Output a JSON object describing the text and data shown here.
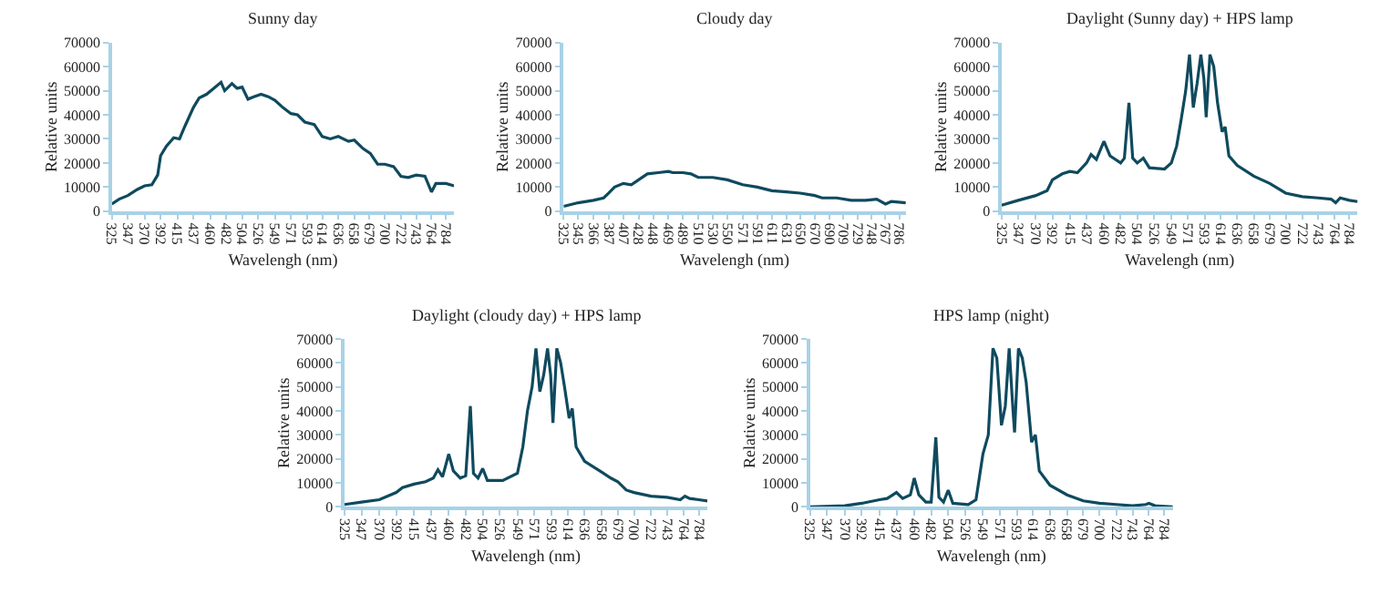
{
  "chart_data": [
    {
      "type": "line",
      "title": "Sunny day",
      "xlabel": "Wavelengh (nm)",
      "ylabel": "Relative units",
      "xlim": [
        325,
        795
      ],
      "ylim": [
        0,
        70000
      ],
      "xticks": [
        325,
        347,
        370,
        392,
        415,
        437,
        460,
        482,
        504,
        526,
        549,
        571,
        593,
        614,
        636,
        658,
        679,
        700,
        722,
        743,
        764,
        784
      ],
      "yticks": [
        0,
        10000,
        20000,
        30000,
        40000,
        50000,
        60000,
        70000
      ],
      "series": [
        {
          "color": "#0f4a5e",
          "x": [
            325,
            335,
            347,
            360,
            370,
            380,
            388,
            392,
            400,
            410,
            418,
            425,
            437,
            445,
            455,
            465,
            475,
            480,
            490,
            497,
            504,
            512,
            520,
            530,
            540,
            549,
            560,
            571,
            580,
            590,
            603,
            614,
            625,
            636,
            650,
            658,
            670,
            680,
            690,
            700,
            712,
            722,
            732,
            743,
            755,
            764,
            770,
            784,
            795
          ],
          "values": [
            3000,
            5000,
            6500,
            9000,
            10500,
            11000,
            15000,
            23000,
            27000,
            30500,
            30000,
            35000,
            43000,
            47000,
            48500,
            51000,
            53500,
            50000,
            53000,
            51000,
            51500,
            46500,
            47500,
            48500,
            47500,
            46000,
            43000,
            40500,
            40000,
            37000,
            36000,
            31000,
            30000,
            31000,
            29000,
            29500,
            26000,
            24000,
            19500,
            19500,
            18500,
            14500,
            14000,
            15000,
            14500,
            8000,
            11500,
            11500,
            10500
          ]
        }
      ]
    },
    {
      "type": "line",
      "title": "Cloudy day",
      "xlabel": "Wavelengh (nm)",
      "ylabel": "Relative units",
      "xlim": [
        325,
        795
      ],
      "ylim": [
        0,
        70000
      ],
      "xticks": [
        325,
        345,
        366,
        387,
        407,
        428,
        448,
        469,
        489,
        510,
        530,
        550,
        571,
        591,
        611,
        631,
        650,
        670,
        690,
        709,
        729,
        748,
        767,
        786
      ],
      "yticks": [
        0,
        10000,
        20000,
        30000,
        40000,
        50000,
        60000,
        70000
      ],
      "series": [
        {
          "color": "#0f4a5e",
          "x": [
            325,
            345,
            366,
            380,
            387,
            395,
            407,
            418,
            428,
            440,
            455,
            469,
            475,
            489,
            500,
            510,
            530,
            550,
            571,
            591,
            611,
            631,
            650,
            670,
            680,
            700,
            720,
            740,
            755,
            767,
            775,
            795
          ],
          "values": [
            2000,
            3500,
            4500,
            5500,
            7500,
            10000,
            11500,
            11000,
            13000,
            15500,
            16000,
            16500,
            16000,
            16000,
            15500,
            14000,
            14000,
            13000,
            11000,
            10000,
            8500,
            8000,
            7500,
            6500,
            5500,
            5500,
            4500,
            4500,
            5000,
            3000,
            4000,
            3500
          ]
        }
      ]
    },
    {
      "type": "line",
      "title": "Daylight (Sunny day) + HPS lamp",
      "xlabel": "Wavelengh (nm)",
      "ylabel": "Relative units",
      "xlim": [
        325,
        795
      ],
      "ylim": [
        0,
        70000
      ],
      "xticks": [
        325,
        347,
        370,
        392,
        415,
        437,
        460,
        482,
        504,
        526,
        549,
        571,
        593,
        614,
        636,
        658,
        679,
        700,
        722,
        743,
        764,
        784
      ],
      "yticks": [
        0,
        10000,
        20000,
        30000,
        40000,
        50000,
        60000,
        70000
      ],
      "series": [
        {
          "color": "#0f4a5e",
          "x": [
            325,
            347,
            370,
            385,
            392,
            405,
            415,
            425,
            437,
            443,
            450,
            460,
            468,
            482,
            487,
            493,
            498,
            504,
            512,
            520,
            540,
            549,
            556,
            562,
            568,
            573,
            578,
            583,
            588,
            592,
            595,
            600,
            605,
            610,
            616,
            620,
            625,
            636,
            658,
            679,
            700,
            722,
            743,
            760,
            766,
            772,
            784,
            795
          ],
          "values": [
            2500,
            4500,
            6500,
            8500,
            13000,
            15500,
            16500,
            16000,
            20000,
            23500,
            21500,
            29000,
            23000,
            20000,
            22000,
            45000,
            22000,
            20000,
            22000,
            18000,
            17500,
            20000,
            27000,
            38000,
            50000,
            65000,
            43000,
            53000,
            65000,
            55000,
            39000,
            65000,
            60000,
            45000,
            33000,
            35000,
            23000,
            19000,
            14500,
            11500,
            7500,
            6000,
            5500,
            5000,
            3500,
            5500,
            4500,
            4000
          ]
        }
      ]
    },
    {
      "type": "line",
      "title": "Daylight (cloudy day) + HPS lamp",
      "xlabel": "Wavelengh (nm)",
      "ylabel": "Relative units",
      "xlim": [
        325,
        795
      ],
      "ylim": [
        0,
        70000
      ],
      "xticks": [
        325,
        347,
        370,
        392,
        415,
        437,
        460,
        482,
        504,
        526,
        549,
        571,
        593,
        614,
        636,
        658,
        679,
        700,
        722,
        743,
        764,
        784
      ],
      "yticks": [
        0,
        10000,
        20000,
        30000,
        40000,
        50000,
        60000,
        70000
      ],
      "series": [
        {
          "color": "#0f4a5e",
          "x": [
            325,
            347,
            370,
            392,
            400,
            415,
            430,
            440,
            446,
            452,
            460,
            466,
            475,
            482,
            488,
            492,
            498,
            504,
            510,
            530,
            549,
            556,
            562,
            568,
            573,
            578,
            583,
            588,
            592,
            595,
            600,
            605,
            610,
            616,
            620,
            625,
            636,
            658,
            670,
            679,
            690,
            700,
            722,
            743,
            760,
            766,
            772,
            784,
            795
          ],
          "values": [
            1000,
            2000,
            3000,
            6000,
            8000,
            9500,
            10500,
            12000,
            15500,
            12500,
            22000,
            15000,
            12000,
            13000,
            42000,
            14000,
            12000,
            16000,
            11000,
            11000,
            14000,
            25000,
            40000,
            50000,
            66000,
            48000,
            55000,
            66000,
            55000,
            35000,
            66000,
            60000,
            50000,
            37000,
            41000,
            25000,
            19000,
            14500,
            12000,
            10500,
            7000,
            6000,
            4500,
            4000,
            3000,
            4500,
            3500,
            3000,
            2500
          ]
        }
      ]
    },
    {
      "type": "line",
      "title": "HPS lamp (night)",
      "xlabel": "Wavelengh (nm)",
      "ylabel": "Relative units",
      "xlim": [
        325,
        795
      ],
      "ylim": [
        0,
        70000
      ],
      "xticks": [
        325,
        347,
        370,
        392,
        415,
        437,
        460,
        482,
        504,
        526,
        549,
        571,
        593,
        614,
        636,
        658,
        679,
        700,
        722,
        743,
        764,
        784
      ],
      "yticks": [
        0,
        10000,
        20000,
        30000,
        40000,
        50000,
        60000,
        70000
      ],
      "series": [
        {
          "color": "#0f4a5e",
          "x": [
            325,
            370,
            392,
            415,
            425,
            437,
            445,
            455,
            460,
            466,
            475,
            482,
            488,
            492,
            498,
            504,
            510,
            530,
            540,
            549,
            556,
            562,
            567,
            573,
            578,
            583,
            588,
            590,
            595,
            600,
            605,
            612,
            617,
            622,
            636,
            658,
            679,
            700,
            722,
            743,
            760,
            764,
            772,
            795
          ],
          "values": [
            0,
            500,
            1500,
            3000,
            3500,
            6000,
            3500,
            5000,
            12000,
            5000,
            2000,
            2000,
            29000,
            4000,
            2000,
            7000,
            1500,
            1000,
            3000,
            22000,
            30000,
            66000,
            62000,
            34000,
            42000,
            66000,
            40000,
            31000,
            66000,
            62000,
            52000,
            27000,
            30000,
            15000,
            9000,
            5000,
            2500,
            1500,
            1000,
            500,
            1000,
            1500,
            500,
            0
          ]
        }
      ]
    }
  ]
}
